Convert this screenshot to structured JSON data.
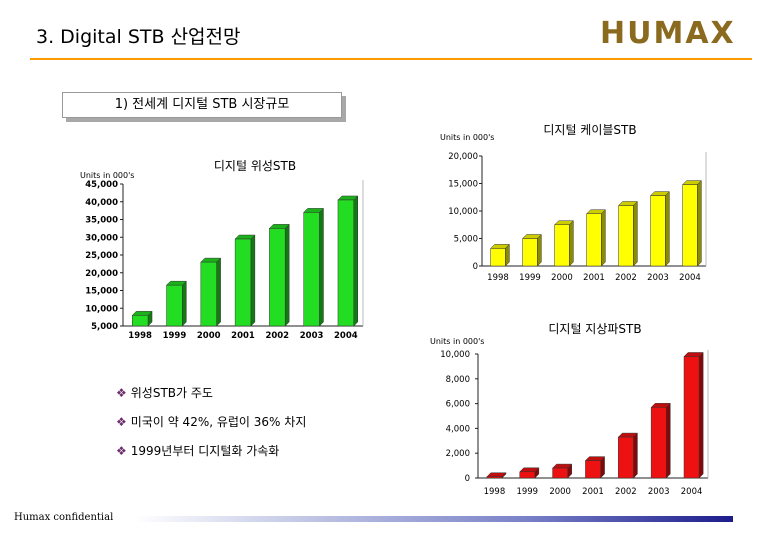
{
  "header": {
    "title": "3. Digital STB 산업전망",
    "logo_text": "HUMAX"
  },
  "section": {
    "heading": "1) 전세계 디지털 STB 시장규모"
  },
  "bullets": [
    "위성STB가 주도",
    "미국이 약 42%, 유럽이 36% 차지",
    "1999년부터 디지털화 가속화"
  ],
  "footer": {
    "text": "Humax confidential"
  },
  "colors": {
    "satellite": "#22dd22",
    "cable": "#ffff00",
    "terrestrial": "#ee1111"
  },
  "chart_data": [
    {
      "type": "bar",
      "title": "디지털 위성STB",
      "unit_label": "Units in 000's",
      "categories": [
        "1998",
        "1999",
        "2000",
        "2001",
        "2002",
        "2003",
        "2004"
      ],
      "values": [
        8000,
        16500,
        23000,
        29500,
        32500,
        37000,
        40500
      ],
      "yticks": [
        "5,000",
        "10,000",
        "15,000",
        "20,000",
        "25,000",
        "30,000",
        "35,000",
        "40,000",
        "45,000"
      ],
      "ylim": [
        5000,
        45000
      ]
    },
    {
      "type": "bar",
      "title": "디지털 케이블STB",
      "unit_label": "Units in 000's",
      "categories": [
        "1998",
        "1999",
        "2000",
        "2001",
        "2002",
        "2003",
        "2004"
      ],
      "values": [
        3200,
        5000,
        7500,
        9500,
        11000,
        12800,
        14800
      ],
      "yticks": [
        "0",
        "5,000",
        "10,000",
        "15,000",
        "20,000"
      ],
      "ylim": [
        0,
        20000
      ]
    },
    {
      "type": "bar",
      "title": "디지털 지상파STB",
      "unit_label": "Units in 000's",
      "categories": [
        "1998",
        "1999",
        "2000",
        "2001",
        "2002",
        "2003",
        "2004"
      ],
      "values": [
        100,
        500,
        800,
        1400,
        3300,
        5700,
        9800
      ],
      "yticks": [
        "0",
        "2,000",
        "4,000",
        "6,000",
        "8,000",
        "10,000"
      ],
      "ylim": [
        0,
        10000
      ]
    }
  ]
}
